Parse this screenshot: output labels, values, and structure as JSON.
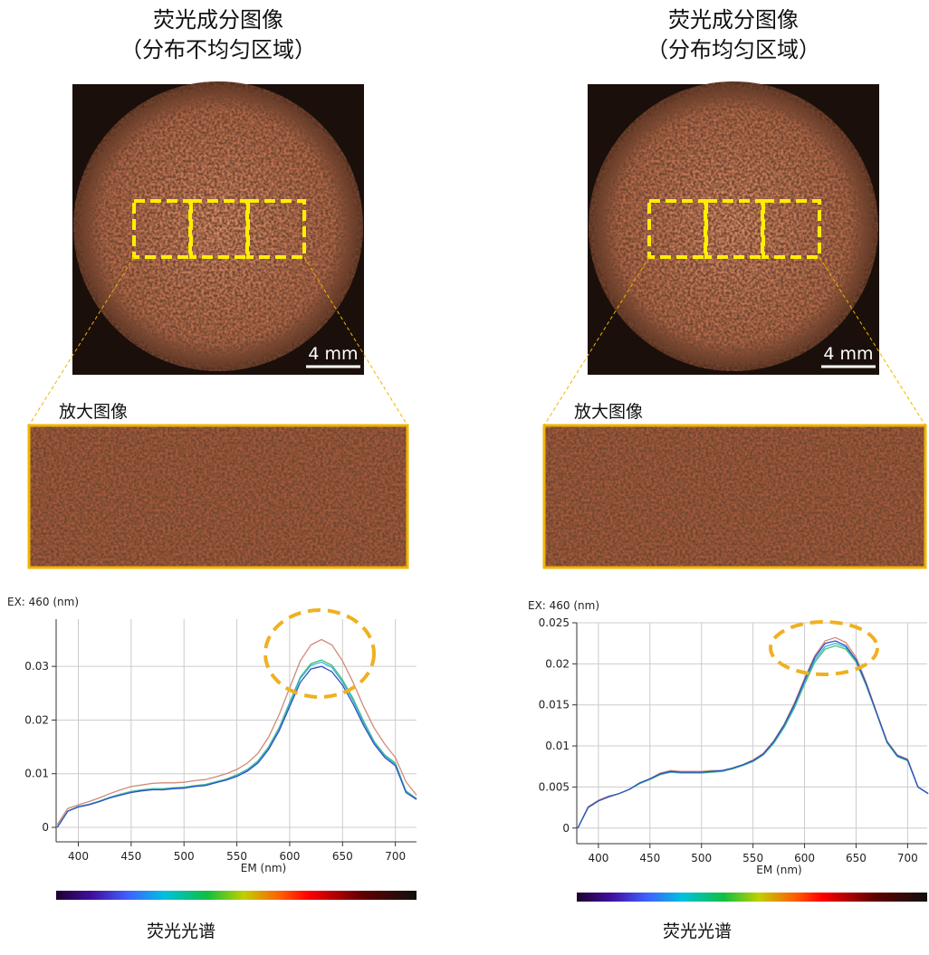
{
  "panels": [
    {
      "title": "荧光成分图像",
      "subtitle": "（分布不均匀区域）",
      "scale": "4 mm",
      "zoom_label": "放大图像",
      "caption": "荧光光谱"
    },
    {
      "title": "荧光成分图像",
      "subtitle": "（分布均匀区域）",
      "scale": "4 mm",
      "zoom_label": "放大图像",
      "caption": "荧光光谱"
    }
  ],
  "chart_data": [
    {
      "type": "line",
      "ylabel": "EX: 460 (nm)",
      "xlabel": "EM (nm)",
      "x": [
        380,
        390,
        400,
        410,
        420,
        430,
        440,
        450,
        460,
        470,
        480,
        490,
        500,
        510,
        520,
        530,
        540,
        550,
        560,
        570,
        580,
        590,
        600,
        610,
        620,
        630,
        640,
        650,
        660,
        670,
        680,
        690,
        700,
        710,
        720
      ],
      "xlim": [
        379,
        720
      ],
      "xticks": [
        400,
        450,
        500,
        550,
        600,
        650,
        700
      ],
      "ylim": [
        -0.0027,
        0.0388
      ],
      "yticks": [
        0,
        0.01,
        0.02,
        0.03
      ],
      "grid": true,
      "series": [
        {
          "color": "#d08a78",
          "values": [
            0.0005,
            0.0035,
            0.0042,
            0.0048,
            0.0055,
            0.0063,
            0.007,
            0.0076,
            0.0079,
            0.0082,
            0.0083,
            0.0083,
            0.0084,
            0.0087,
            0.0089,
            0.0094,
            0.01,
            0.0108,
            0.012,
            0.0138,
            0.0168,
            0.021,
            0.026,
            0.031,
            0.034,
            0.035,
            0.034,
            0.031,
            0.027,
            0.0225,
            0.0185,
            0.0155,
            0.013,
            0.0085,
            0.006
          ]
        },
        {
          "color": "#40c080",
          "values": [
            0.0,
            0.003,
            0.0039,
            0.0043,
            0.0049,
            0.0056,
            0.0062,
            0.0067,
            0.007,
            0.0072,
            0.0072,
            0.0074,
            0.0075,
            0.0078,
            0.008,
            0.0085,
            0.009,
            0.0098,
            0.0108,
            0.0124,
            0.015,
            0.0186,
            0.0233,
            0.028,
            0.0305,
            0.0312,
            0.0302,
            0.0275,
            0.024,
            0.0198,
            0.016,
            0.0135,
            0.012,
            0.0068,
            0.0054
          ]
        },
        {
          "color": "#40b0d0",
          "values": [
            0.0,
            0.003,
            0.0039,
            0.0043,
            0.0048,
            0.0056,
            0.0061,
            0.0066,
            0.0069,
            0.0071,
            0.0071,
            0.0073,
            0.0074,
            0.0077,
            0.0079,
            0.0084,
            0.0089,
            0.0097,
            0.0107,
            0.0122,
            0.0148,
            0.0184,
            0.023,
            0.0277,
            0.0302,
            0.0308,
            0.0298,
            0.0271,
            0.0236,
            0.0195,
            0.0158,
            0.0133,
            0.0118,
            0.0067,
            0.0053
          ]
        },
        {
          "color": "#3050c0",
          "values": [
            0.0,
            0.003,
            0.0038,
            0.0042,
            0.0048,
            0.0055,
            0.006,
            0.0065,
            0.0068,
            0.007,
            0.007,
            0.0072,
            0.0073,
            0.0076,
            0.0078,
            0.0083,
            0.0088,
            0.0095,
            0.0105,
            0.012,
            0.0145,
            0.018,
            0.0225,
            0.027,
            0.0295,
            0.03,
            0.029,
            0.0265,
            0.023,
            0.019,
            0.0155,
            0.013,
            0.0115,
            0.0065,
            0.0052
          ]
        }
      ]
    },
    {
      "type": "line",
      "ylabel": "EX: 460 (nm)",
      "xlabel": "EM (nm)",
      "x": [
        380,
        390,
        400,
        410,
        420,
        430,
        440,
        450,
        460,
        470,
        480,
        490,
        500,
        510,
        520,
        530,
        540,
        550,
        560,
        570,
        580,
        590,
        600,
        610,
        620,
        630,
        640,
        650,
        660,
        670,
        680,
        690,
        700,
        710,
        720
      ],
      "xlim": [
        379,
        719
      ],
      "xticks": [
        400,
        450,
        500,
        550,
        600,
        650,
        700
      ],
      "ylim": [
        -0.0019,
        0.025
      ],
      "yticks": [
        0,
        0.005,
        0.01,
        0.015,
        0.02,
        0.025
      ],
      "grid": true,
      "series": [
        {
          "color": "#d08a78",
          "values": [
            0.0,
            0.0026,
            0.0034,
            0.0039,
            0.0042,
            0.0047,
            0.0055,
            0.006,
            0.0067,
            0.007,
            0.0069,
            0.0069,
            0.0069,
            0.007,
            0.007,
            0.0073,
            0.0077,
            0.0083,
            0.0091,
            0.0106,
            0.0126,
            0.0152,
            0.0182,
            0.021,
            0.0228,
            0.0232,
            0.0226,
            0.0208,
            0.0177,
            0.0141,
            0.0106,
            0.0089,
            0.0084,
            0.005,
            0.0042
          ]
        },
        {
          "color": "#40c080",
          "values": [
            0.0,
            0.0025,
            0.0033,
            0.0038,
            0.0042,
            0.0047,
            0.0054,
            0.0059,
            0.0065,
            0.0068,
            0.0067,
            0.0067,
            0.0067,
            0.0068,
            0.0069,
            0.0072,
            0.0076,
            0.0081,
            0.0089,
            0.0103,
            0.0122,
            0.0146,
            0.0175,
            0.0202,
            0.0218,
            0.0222,
            0.0218,
            0.0202,
            0.0173,
            0.0139,
            0.0104,
            0.0087,
            0.0082,
            0.005,
            0.0042
          ]
        },
        {
          "color": "#40b0d0",
          "values": [
            0.0,
            0.0025,
            0.0033,
            0.0038,
            0.0042,
            0.0047,
            0.0055,
            0.006,
            0.0066,
            0.0068,
            0.0068,
            0.0068,
            0.0068,
            0.0069,
            0.007,
            0.0073,
            0.0077,
            0.0082,
            0.009,
            0.0104,
            0.0124,
            0.0148,
            0.0178,
            0.0205,
            0.0221,
            0.0225,
            0.022,
            0.0204,
            0.0174,
            0.014,
            0.0105,
            0.0088,
            0.0083,
            0.005,
            0.0042
          ]
        },
        {
          "color": "#3050c0",
          "values": [
            0.0,
            0.0025,
            0.0033,
            0.0038,
            0.0042,
            0.0047,
            0.0055,
            0.006,
            0.0066,
            0.0069,
            0.0068,
            0.0068,
            0.0068,
            0.0069,
            0.007,
            0.0073,
            0.0077,
            0.0082,
            0.009,
            0.0105,
            0.0125,
            0.015,
            0.018,
            0.0208,
            0.0225,
            0.0228,
            0.0222,
            0.0205,
            0.0175,
            0.014,
            0.0105,
            0.0088,
            0.0083,
            0.005,
            0.0042
          ]
        }
      ]
    }
  ]
}
